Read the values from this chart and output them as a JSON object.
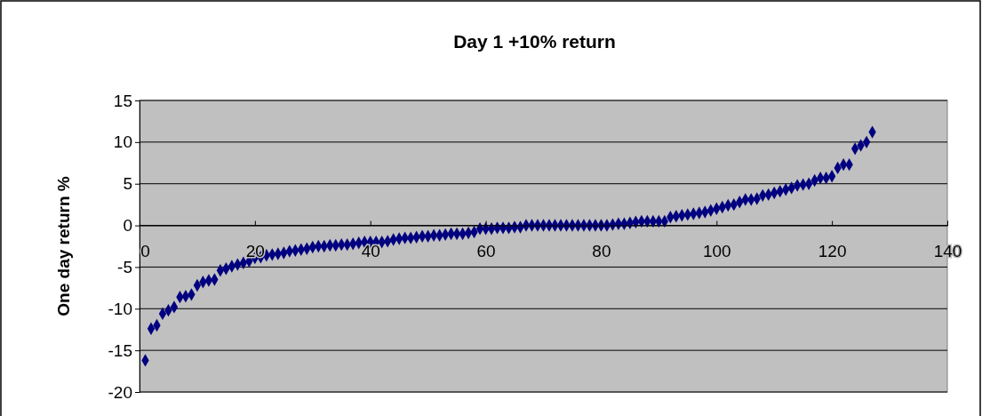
{
  "chart_data": {
    "type": "scatter",
    "title": "Day 1 +10% return",
    "ylabel": "One day return %",
    "x": [
      1,
      2,
      3,
      4,
      5,
      6,
      7,
      8,
      9,
      10,
      11,
      12,
      13,
      14,
      15,
      16,
      17,
      18,
      19,
      20,
      21,
      22,
      23,
      24,
      25,
      26,
      27,
      28,
      29,
      30,
      31,
      32,
      33,
      34,
      35,
      36,
      37,
      38,
      39,
      40,
      41,
      42,
      43,
      44,
      45,
      46,
      47,
      48,
      49,
      50,
      51,
      52,
      53,
      54,
      55,
      56,
      57,
      58,
      59,
      60,
      61,
      62,
      63,
      64,
      65,
      66,
      67,
      68,
      69,
      70,
      71,
      72,
      73,
      74,
      75,
      76,
      77,
      78,
      79,
      80,
      81,
      82,
      83,
      84,
      85,
      86,
      87,
      88,
      89,
      90,
      91,
      92,
      93,
      94,
      95,
      96,
      97,
      98,
      99,
      100,
      101,
      102,
      103,
      104,
      105,
      106,
      107,
      108,
      109,
      110,
      111,
      112,
      113,
      114,
      115,
      116,
      117,
      118,
      119,
      120,
      121,
      122,
      123,
      124,
      125,
      126,
      127
    ],
    "series": [
      {
        "color": "#000080",
        "values": [
          -16.2,
          -12.4,
          -12.0,
          -10.6,
          -10.2,
          -9.8,
          -8.6,
          -8.5,
          -8.3,
          -7.2,
          -6.8,
          -6.6,
          -6.5,
          -5.4,
          -5.2,
          -4.9,
          -4.7,
          -4.5,
          -4.3,
          -3.9,
          -3.8,
          -3.6,
          -3.5,
          -3.4,
          -3.3,
          -3.1,
          -3.0,
          -2.9,
          -2.8,
          -2.6,
          -2.5,
          -2.5,
          -2.4,
          -2.4,
          -2.3,
          -2.3,
          -2.2,
          -2.1,
          -2.0,
          -2.0,
          -2.0,
          -2.0,
          -1.9,
          -1.7,
          -1.6,
          -1.5,
          -1.5,
          -1.4,
          -1.3,
          -1.3,
          -1.2,
          -1.2,
          -1.1,
          -1.0,
          -1.0,
          -1.0,
          -0.9,
          -0.8,
          -0.4,
          -0.4,
          -0.4,
          -0.3,
          -0.3,
          -0.3,
          -0.2,
          -0.2,
          0,
          0,
          0,
          0,
          0,
          0,
          0,
          0,
          0,
          0,
          0,
          0,
          0,
          0,
          0,
          0.1,
          0.2,
          0.2,
          0.3,
          0.4,
          0.5,
          0.5,
          0.5,
          0.5,
          0.5,
          1.0,
          1.1,
          1.2,
          1.3,
          1.4,
          1.5,
          1.6,
          1.8,
          2.0,
          2.2,
          2.4,
          2.5,
          2.8,
          3.1,
          3.1,
          3.2,
          3.6,
          3.7,
          3.9,
          4.1,
          4.3,
          4.5,
          4.8,
          4.9,
          5.0,
          5.4,
          5.7,
          5.7,
          5.9,
          6.9,
          7.3,
          7.3,
          9.2,
          9.6,
          10.0,
          11.2
        ]
      }
    ],
    "xlim": [
      0,
      140
    ],
    "xticks": [
      0,
      20,
      40,
      60,
      80,
      100,
      120,
      140
    ],
    "ylim": [
      -20,
      15
    ],
    "yticks": [
      -20,
      -15,
      -10,
      -5,
      0,
      5,
      10,
      15
    ],
    "grid": "y",
    "marker": "diamond"
  }
}
